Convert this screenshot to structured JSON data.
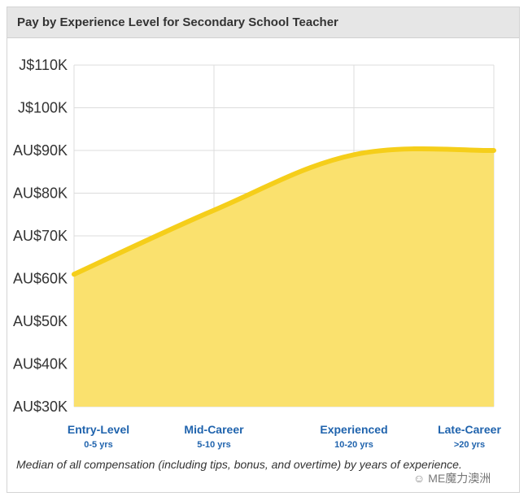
{
  "header": {
    "title": "Pay by Experience Level for Secondary School Teacher"
  },
  "chart_data": {
    "type": "area",
    "title": "Pay by Experience Level for Secondary School Teacher",
    "xlabel": "",
    "ylabel": "",
    "ylim": [
      30000,
      110000
    ],
    "yticks": [
      {
        "value": 110000,
        "label": "J$110K"
      },
      {
        "value": 100000,
        "label": "J$100K"
      },
      {
        "value": 90000,
        "label": "AU$90K"
      },
      {
        "value": 80000,
        "label": "AU$80K"
      },
      {
        "value": 70000,
        "label": "AU$70K"
      },
      {
        "value": 60000,
        "label": "AU$60K"
      },
      {
        "value": 50000,
        "label": "AU$50K"
      },
      {
        "value": 40000,
        "label": "AU$40K"
      },
      {
        "value": 30000,
        "label": "AU$30K"
      }
    ],
    "categories": [
      {
        "label": "Entry-Level",
        "sub": "0-5 yrs"
      },
      {
        "label": "Mid-Career",
        "sub": "5-10 yrs"
      },
      {
        "label": "Experienced",
        "sub": "10-20 yrs"
      },
      {
        "label": "Late-Career",
        "sub": ">20 yrs"
      }
    ],
    "values": [
      61000,
      76000,
      89000,
      90000
    ],
    "grid": true,
    "colors": {
      "fill": "#fae16e",
      "line": "#f5ce1a",
      "grid": "#dcdcdc",
      "label": "#1f63ad"
    }
  },
  "caption": "Median of all compensation (including tips, bonus, and overtime) by years of experience.",
  "watermark": "ME魔力澳洲"
}
